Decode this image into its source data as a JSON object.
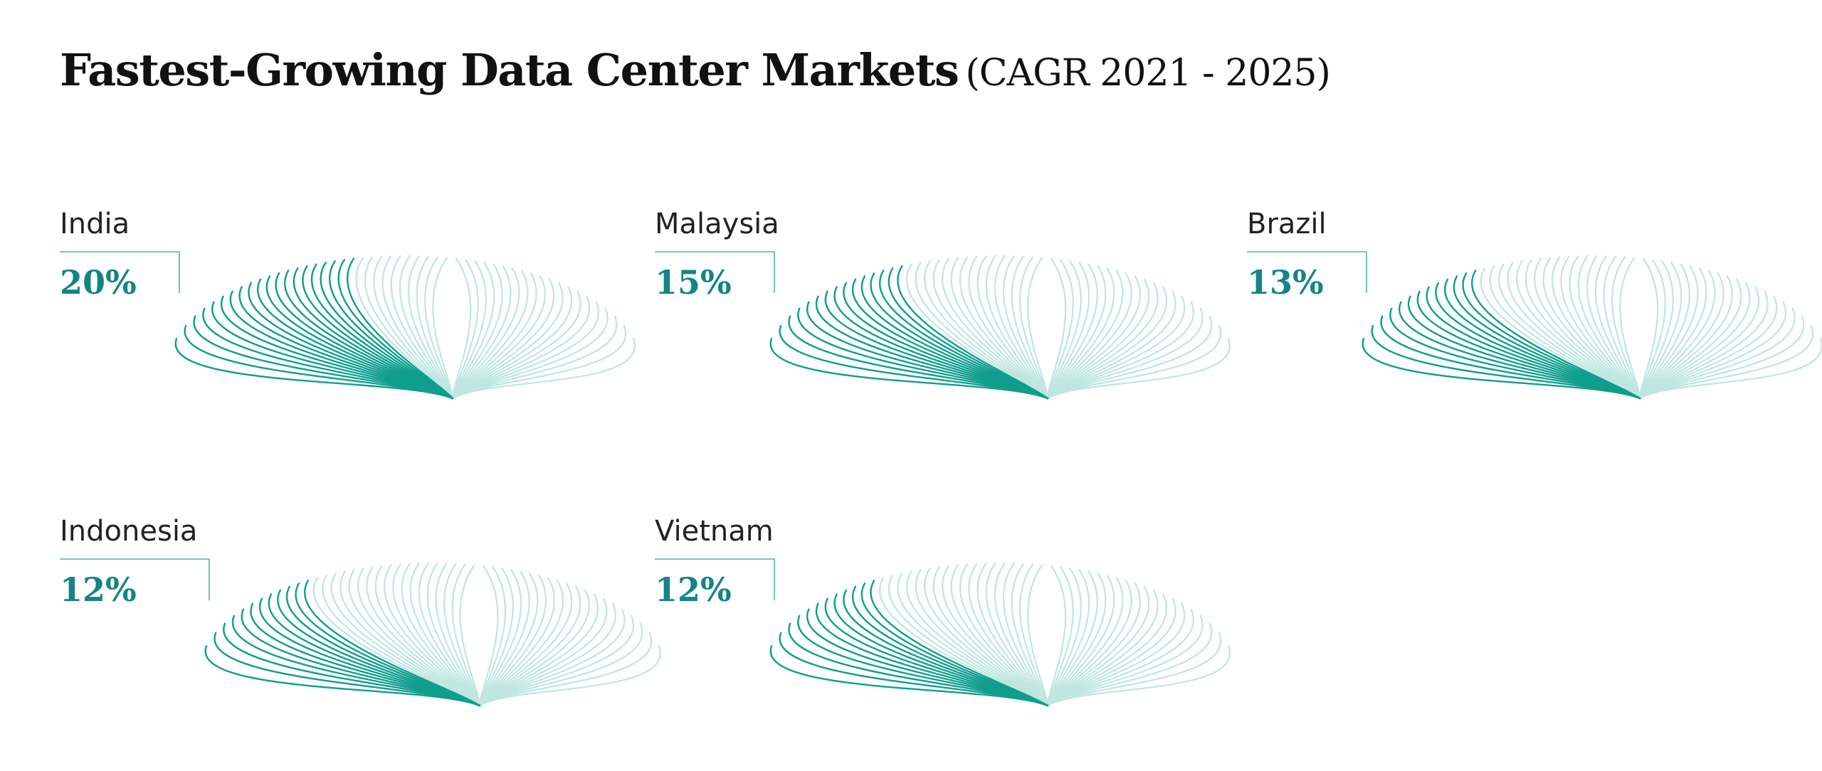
{
  "title": {
    "main": "Fastest-Growing Data Center Markets",
    "sub": "(CAGR 2021 - 2025)"
  },
  "colors": {
    "accent": "#0f9e8e",
    "light": "#bfe6e0",
    "value_text": "#138585"
  },
  "chart_data": {
    "type": "radial-fan",
    "unit": "%",
    "categories": [
      "India",
      "Malaysia",
      "Brazil",
      "Indonesia",
      "Vietnam"
    ],
    "values": [
      20,
      15,
      13,
      12,
      12
    ],
    "labels": [
      "20%",
      "15%",
      "13%",
      "12%",
      "12%"
    ]
  }
}
